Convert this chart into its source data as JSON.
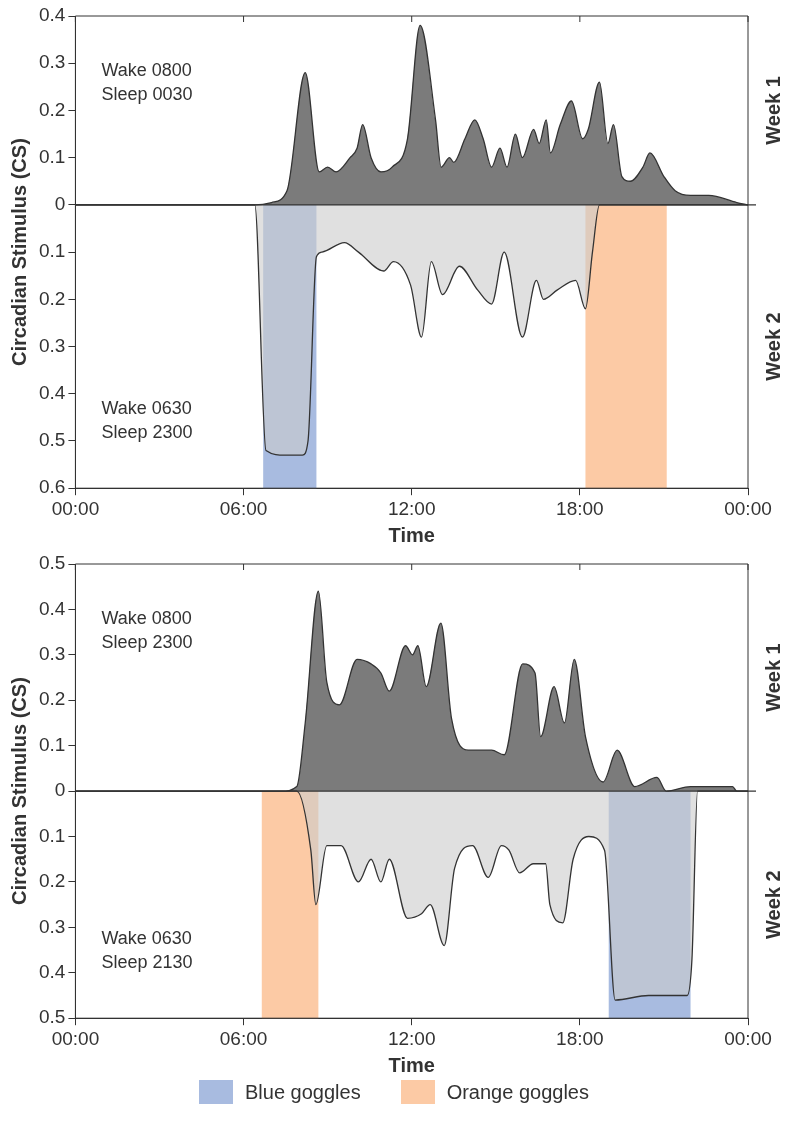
{
  "chart_data": [
    {
      "type": "area",
      "ylabel": "Circadian Stimulus (CS)",
      "xlabel": "Time",
      "xlim": [
        0,
        24
      ],
      "xticks": [
        {
          "value": 0,
          "label": "00:00"
        },
        {
          "value": 6,
          "label": "06:00"
        },
        {
          "value": 12,
          "label": "12:00"
        },
        {
          "value": 18,
          "label": "18:00"
        },
        {
          "value": 24,
          "label": "00:00"
        }
      ],
      "ylim": [
        -0.6,
        0.4
      ],
      "yticks": [
        {
          "value": -0.6,
          "label": "0.6"
        },
        {
          "value": -0.5,
          "label": "0.5"
        },
        {
          "value": -0.4,
          "label": "0.4"
        },
        {
          "value": -0.3,
          "label": "0.3"
        },
        {
          "value": -0.2,
          "label": "0.2"
        },
        {
          "value": -0.1,
          "label": "0.1"
        },
        0,
        0.1,
        0.2,
        0.3,
        0.4
      ],
      "series": [
        {
          "name": "Week 1",
          "color": "#7b7b7b",
          "x": [
            0,
            6.4,
            7.0,
            7.55,
            8.2,
            8.7,
            9.0,
            9.3,
            9.8,
            10.05,
            10.25,
            10.55,
            10.9,
            11.3,
            11.85,
            12.3,
            12.85,
            13.05,
            13.35,
            13.5,
            13.9,
            14.25,
            14.55,
            14.85,
            15.15,
            15.4,
            15.7,
            15.95,
            16.35,
            16.55,
            16.8,
            16.95,
            17.3,
            17.7,
            18.1,
            18.3,
            18.7,
            19.0,
            19.2,
            19.5,
            19.8,
            20.25,
            20.5,
            21.0,
            21.4,
            21.95,
            22.6,
            23.6,
            24
          ],
          "values": [
            0,
            0,
            0.005,
            0.03,
            0.28,
            0.07,
            0.08,
            0.07,
            0.1,
            0.12,
            0.17,
            0.1,
            0.07,
            0.08,
            0.14,
            0.38,
            0.18,
            0.08,
            0.1,
            0.09,
            0.14,
            0.18,
            0.14,
            0.08,
            0.12,
            0.08,
            0.15,
            0.1,
            0.16,
            0.13,
            0.18,
            0.11,
            0.17,
            0.22,
            0.14,
            0.16,
            0.26,
            0.13,
            0.17,
            0.06,
            0.05,
            0.08,
            0.11,
            0.06,
            0.03,
            0.02,
            0.02,
            0.005,
            0
          ]
        },
        {
          "name": "Week 2",
          "color": "#e0e0e0",
          "x": [
            0,
            6.4,
            6.8,
            7.5,
            8.1,
            8.3,
            8.6,
            8.8,
            9.6,
            10.1,
            11.0,
            11.35,
            11.96,
            12.35,
            12.7,
            13.1,
            13.7,
            14.35,
            14.85,
            15.3,
            15.95,
            16.45,
            16.7,
            17.2,
            17.85,
            18.2,
            18.45,
            18.7,
            24
          ],
          "values": [
            0,
            0,
            -0.52,
            -0.53,
            -0.53,
            -0.5,
            -0.11,
            -0.1,
            -0.08,
            -0.1,
            -0.14,
            -0.12,
            -0.17,
            -0.28,
            -0.12,
            -0.19,
            -0.13,
            -0.18,
            -0.21,
            -0.1,
            -0.28,
            -0.16,
            -0.2,
            -0.18,
            -0.16,
            -0.22,
            -0.1,
            0,
            0
          ]
        }
      ],
      "bands": [
        {
          "axis": "x",
          "from": 6.7,
          "to": 8.6,
          "color": "#a8bbe0"
        },
        {
          "axis": "x",
          "from": 18.2,
          "to": 21.1,
          "color": "#fccaa5"
        }
      ],
      "ref_lines": [
        {
          "axis": "y",
          "value": 0,
          "color": "#333333"
        }
      ],
      "annotations": [
        "Wake 0800\nSleep 0030",
        "Wake 0630\nSleep 2300"
      ]
    },
    {
      "type": "area",
      "ylabel": "Circadian Stimulus (CS)",
      "xlabel": "Time",
      "xlim": [
        0,
        24
      ],
      "xticks": [
        {
          "value": 0,
          "label": "00:00"
        },
        {
          "value": 6,
          "label": "06:00"
        },
        {
          "value": 12,
          "label": "12:00"
        },
        {
          "value": 18,
          "label": "18:00"
        },
        {
          "value": 24,
          "label": "00:00"
        }
      ],
      "ylim": [
        -0.5,
        0.5
      ],
      "yticks": [
        {
          "value": -0.5,
          "label": "0.5"
        },
        {
          "value": -0.4,
          "label": "0.4"
        },
        {
          "value": -0.3,
          "label": "0.3"
        },
        {
          "value": -0.2,
          "label": "0.2"
        },
        {
          "value": -0.1,
          "label": "0.1"
        },
        0,
        0.1,
        0.2,
        0.3,
        0.4,
        0.5
      ],
      "series": [
        {
          "name": "Week 1",
          "color": "#7b7b7b",
          "x": [
            0,
            7.36,
            7.9,
            8.2,
            8.67,
            8.97,
            9.42,
            10.05,
            10.55,
            10.9,
            11.2,
            11.78,
            12.03,
            12.22,
            12.52,
            13.04,
            13.42,
            14.02,
            14.85,
            15.3,
            15.96,
            16.4,
            16.6,
            17.08,
            17.45,
            17.8,
            18.2,
            18.83,
            19.33,
            19.96,
            20.75,
            21.08,
            21.95,
            23.45,
            23.6,
            24
          ],
          "values": [
            0,
            0,
            0.01,
            0.15,
            0.44,
            0.24,
            0.19,
            0.29,
            0.28,
            0.26,
            0.22,
            0.32,
            0.3,
            0.32,
            0.23,
            0.37,
            0.16,
            0.09,
            0.09,
            0.08,
            0.28,
            0.26,
            0.12,
            0.23,
            0.15,
            0.29,
            0.12,
            0.02,
            0.09,
            0.01,
            0.03,
            0,
            0.01,
            0.01,
            0,
            0
          ]
        },
        {
          "name": "Week 2",
          "color": "#e0e0e0",
          "x": [
            0,
            7.9,
            8.4,
            8.58,
            8.97,
            9.48,
            10.1,
            10.55,
            10.9,
            11.2,
            11.85,
            12.35,
            12.66,
            13.16,
            13.53,
            14.17,
            14.73,
            15.2,
            15.47,
            15.85,
            16.34,
            16.78,
            16.93,
            17.39,
            17.76,
            18.32,
            18.88,
            19.26,
            20.45,
            21.83,
            22.0,
            22.2,
            24
          ],
          "values": [
            0,
            0,
            -0.13,
            -0.25,
            -0.12,
            -0.12,
            -0.2,
            -0.15,
            -0.2,
            -0.15,
            -0.28,
            -0.27,
            -0.25,
            -0.34,
            -0.17,
            -0.12,
            -0.19,
            -0.12,
            -0.13,
            -0.18,
            -0.16,
            -0.16,
            -0.25,
            -0.29,
            -0.15,
            -0.1,
            -0.13,
            -0.46,
            -0.45,
            -0.45,
            -0.37,
            0,
            0
          ]
        }
      ],
      "bands": [
        {
          "axis": "x",
          "from": 19.03,
          "to": 21.95,
          "color": "#a8bbe0",
          "label": "Blue goggles"
        },
        {
          "axis": "x",
          "from": 6.65,
          "to": 8.67,
          "color": "#fccaa5",
          "label": "Orange goggles"
        }
      ],
      "ref_lines": [
        {
          "axis": "y",
          "value": 0,
          "color": "#333333"
        }
      ],
      "annotations": [
        "Wake 0800\nSleep 2300",
        "Wake 0630\nSleep 2130"
      ],
      "legend": "bottom"
    }
  ]
}
